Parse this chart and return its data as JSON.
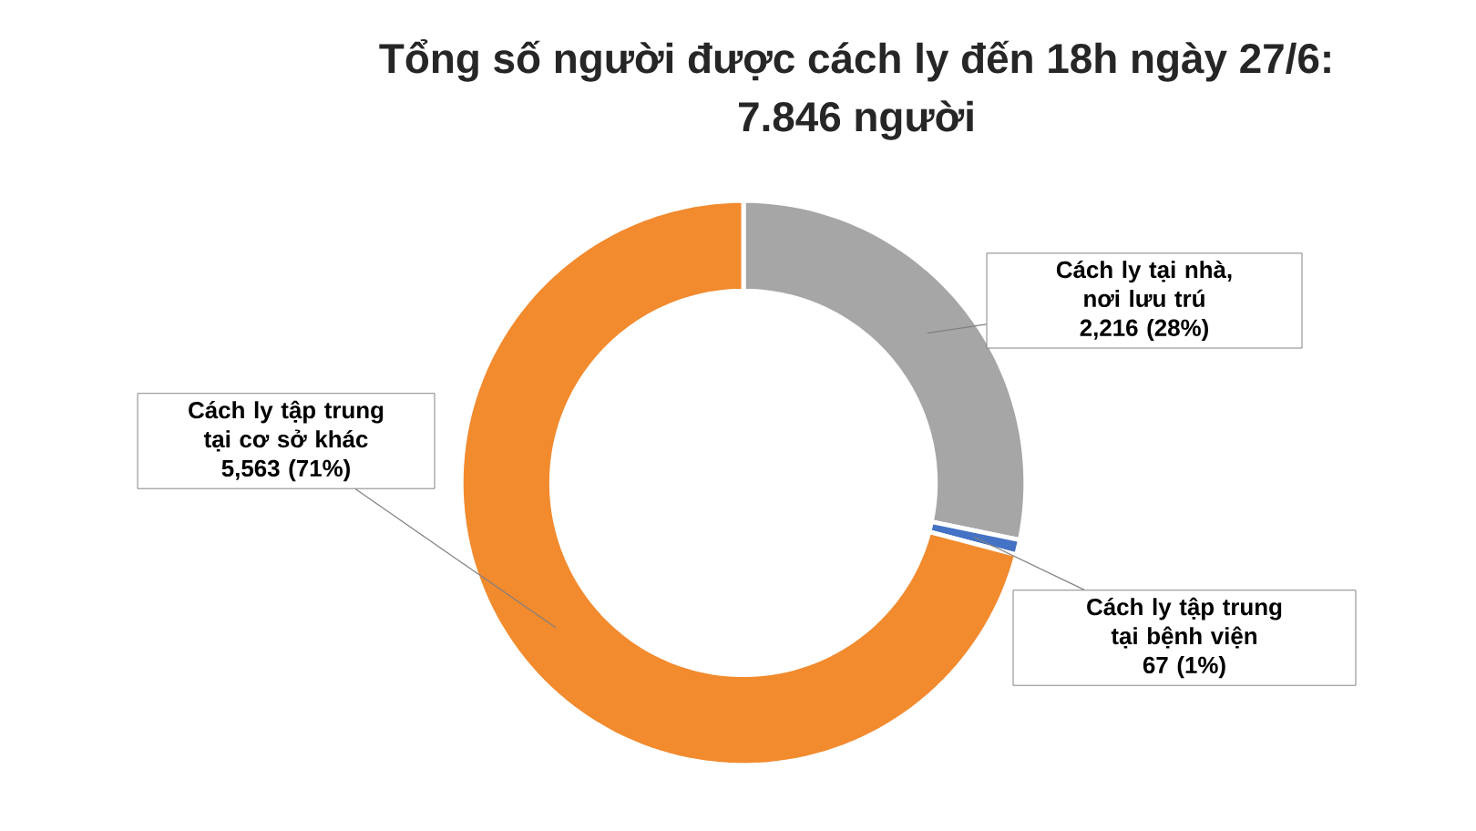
{
  "chart_data": {
    "type": "donut",
    "title": "Tổng số người được cách ly đến 18h ngày 27/6:",
    "subtitle": "7.846 người",
    "categories": [
      "Cách ly tại nhà, nơi lưu trú",
      "Cách ly tập trung tại bệnh viện",
      "Cách ly tập trung tại cơ sở khác"
    ],
    "values": [
      2216,
      67,
      5563
    ],
    "value_labels": [
      "2,216 (28%)",
      "67  (1%)",
      "5,563  (71%)"
    ],
    "colors": [
      "#a6a6a6",
      "#4472c4",
      "#f28a2e"
    ]
  }
}
